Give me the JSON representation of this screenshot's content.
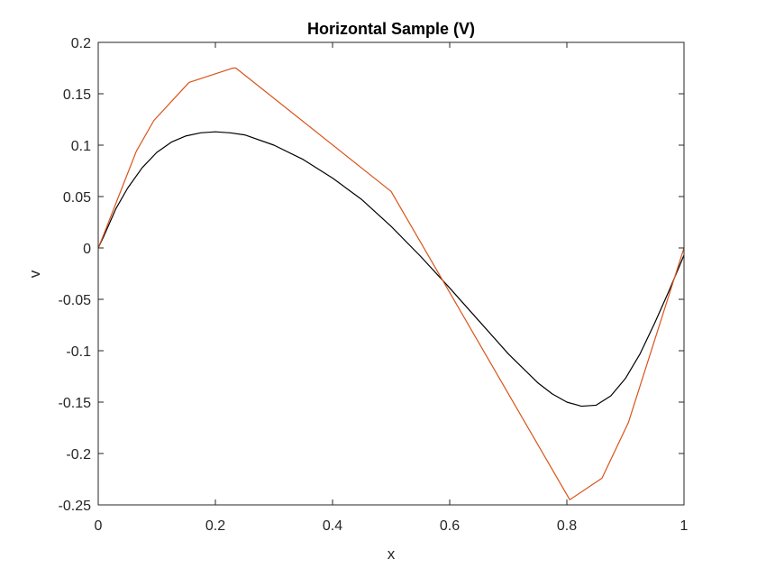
{
  "chart_data": {
    "type": "line",
    "title": "Horizontal Sample (V)",
    "xlabel": "x",
    "ylabel": "v",
    "xlim": [
      0,
      1
    ],
    "ylim": [
      -0.25,
      0.2
    ],
    "xticks": [
      "0",
      "0.2",
      "0.4",
      "0.6",
      "0.8",
      "1"
    ],
    "xtick_values": [
      0,
      0.2,
      0.4,
      0.6,
      0.8,
      1
    ],
    "yticks": [
      "0.2",
      "0.15",
      "0.1",
      "0.05",
      "0",
      "-0.05",
      "-0.1",
      "-0.15",
      "-0.2",
      "-0.25"
    ],
    "ytick_values": [
      0.2,
      0.15,
      0.1,
      0.05,
      0,
      -0.05,
      -0.1,
      -0.15,
      -0.2,
      -0.25
    ],
    "grid": false,
    "series": [
      {
        "color": "#000000",
        "x": [
          0,
          0.01,
          0.03,
          0.05,
          0.075,
          0.1,
          0.125,
          0.15,
          0.175,
          0.2,
          0.225,
          0.25,
          0.3,
          0.35,
          0.4,
          0.45,
          0.5,
          0.55,
          0.6,
          0.65,
          0.7,
          0.75,
          0.775,
          0.8,
          0.825,
          0.85,
          0.875,
          0.9,
          0.925,
          0.95,
          0.975,
          1
        ],
        "y": [
          0,
          0.012,
          0.038,
          0.058,
          0.078,
          0.093,
          0.103,
          0.109,
          0.112,
          0.113,
          0.112,
          0.11,
          0.1,
          0.086,
          0.068,
          0.047,
          0.021,
          -0.008,
          -0.039,
          -0.071,
          -0.103,
          -0.131,
          -0.142,
          -0.15,
          -0.154,
          -0.153,
          -0.144,
          -0.127,
          -0.103,
          -0.073,
          -0.041,
          -0.007
        ]
      },
      {
        "color": "#d95319",
        "x": [
          0,
          0.01,
          0.065,
          0.095,
          0.155,
          0.23,
          0.235,
          0.5,
          0.805,
          0.86,
          0.905,
          1
        ],
        "y": [
          0,
          0.014,
          0.094,
          0.124,
          0.161,
          0.175,
          0.175,
          0.055,
          -0.245,
          -0.224,
          -0.17,
          0
        ]
      }
    ]
  }
}
